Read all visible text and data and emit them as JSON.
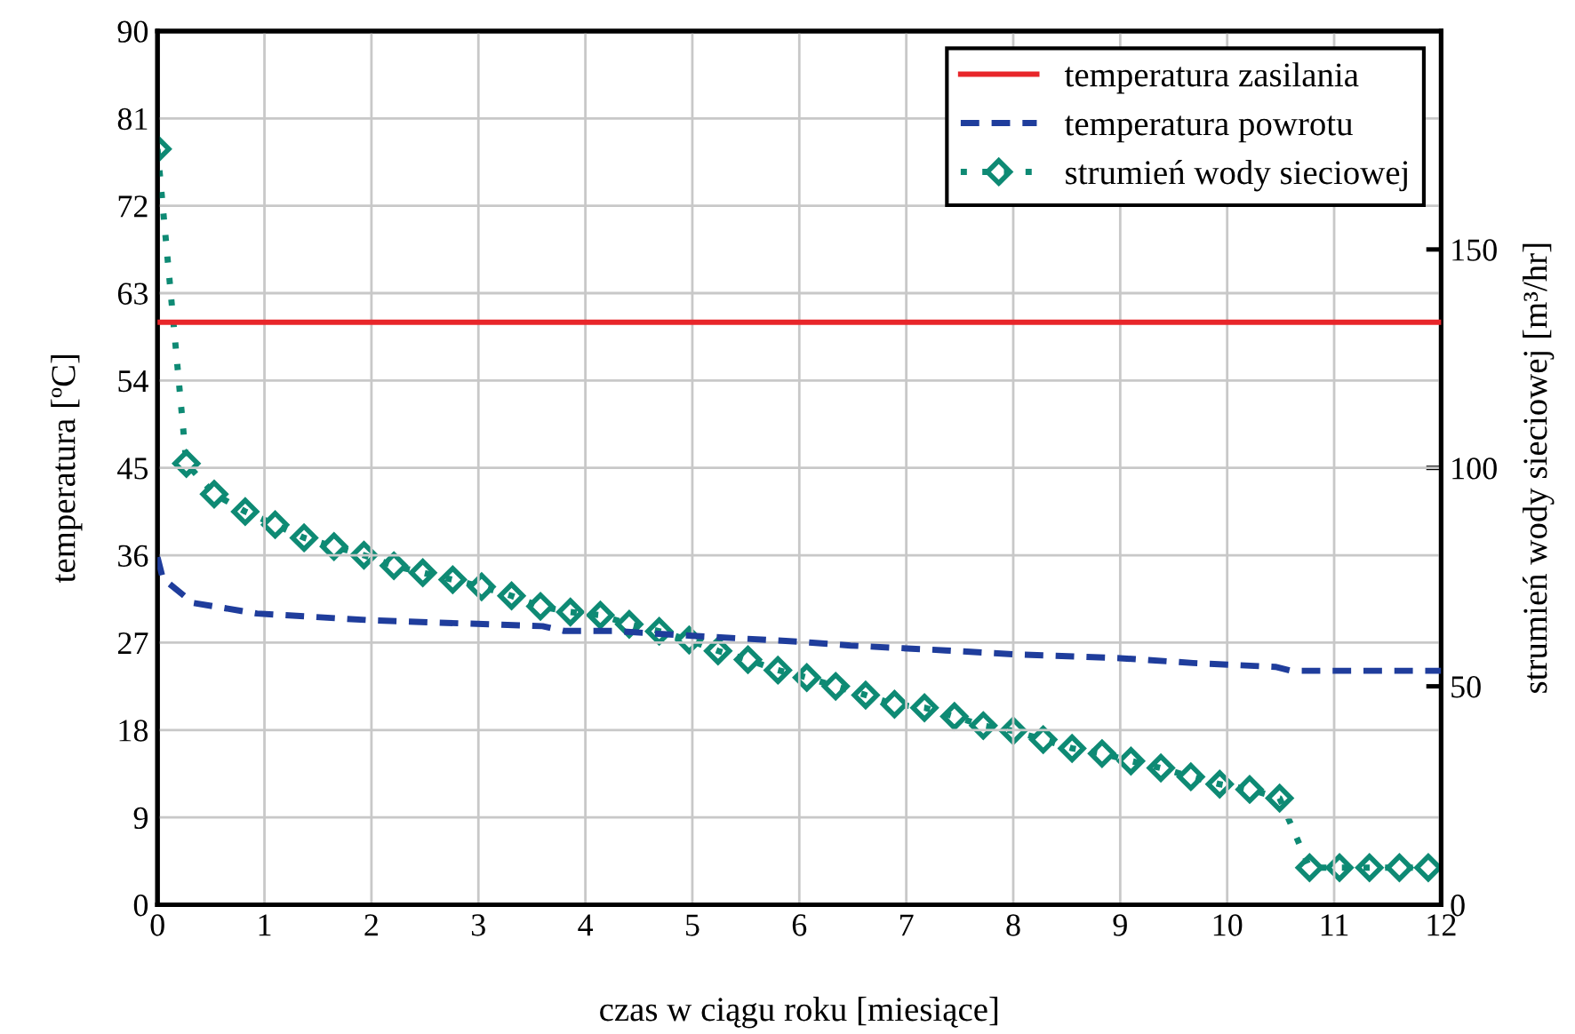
{
  "chart_data": {
    "type": "line",
    "xlabel": "czas w ciągu roku [miesiące]",
    "ylabel": "temperatura [ºC]",
    "y2label": "strumień wody sieciowej [m³/hr]",
    "xlim": [
      0,
      12
    ],
    "xticks": [
      0,
      1,
      2,
      3,
      4,
      5,
      6,
      7,
      8,
      9,
      10,
      11,
      12
    ],
    "ylim": [
      0,
      90
    ],
    "yticks": [
      0,
      9,
      18,
      27,
      36,
      45,
      54,
      63,
      72,
      81,
      90
    ],
    "y2lim": [
      0,
      200
    ],
    "y2ticks": [
      0,
      50,
      100,
      150
    ],
    "grid": true,
    "legend": "top right",
    "series": [
      {
        "name": "temperatura zasilania",
        "color": "#e8262a",
        "line_style": "solid",
        "marker": "none",
        "x": [
          0,
          12
        ],
        "values": [
          60,
          60
        ]
      },
      {
        "name": "temperatura powrotu",
        "color": "#1f3d9c",
        "line_style": "dashed",
        "marker": "none",
        "x": [
          0,
          0.05,
          0.33,
          0.93,
          2.0,
          3.6,
          3.8,
          4.26,
          5.0,
          6.0,
          6.48,
          7.37,
          8.0,
          9.0,
          9.68,
          10.45,
          10.6,
          12.0
        ],
        "values": [
          35.8,
          33.6,
          31.1,
          30.0,
          29.3,
          28.7,
          28.2,
          28.2,
          27.7,
          27.1,
          26.7,
          26.2,
          25.8,
          25.4,
          24.9,
          24.5,
          24.1,
          24.1
        ]
      },
      {
        "name": "strumień wody sieciowej",
        "color": "#0e8a74",
        "line_style": "dotted",
        "marker": "diamond",
        "axis": "y2",
        "x": [
          0.0,
          0.27,
          0.53,
          0.82,
          1.1,
          1.37,
          1.65,
          1.93,
          2.21,
          2.48,
          2.76,
          3.03,
          3.31,
          3.58,
          3.86,
          4.14,
          4.41,
          4.69,
          4.97,
          5.24,
          5.52,
          5.8,
          6.07,
          6.34,
          6.62,
          6.89,
          7.17,
          7.45,
          7.72,
          8.0,
          8.28,
          8.55,
          8.83,
          9.1,
          9.38,
          9.66,
          9.93,
          10.21,
          10.49,
          10.77,
          11.05,
          11.33,
          11.61,
          11.88
        ],
        "values": [
          173,
          101,
          94,
          90,
          87,
          84,
          82,
          80,
          77.6,
          76,
          74.4,
          72.8,
          70.7,
          68.3,
          67,
          66.3,
          64.2,
          62.6,
          60.6,
          58.1,
          56.1,
          53.7,
          52,
          50,
          48,
          45.9,
          45.1,
          43.1,
          41,
          39.8,
          37.8,
          35.8,
          34.6,
          32.9,
          31.3,
          29.3,
          27.6,
          26.4,
          24.4,
          8.5,
          8.5,
          8.5,
          8.5,
          8.5
        ]
      }
    ]
  }
}
